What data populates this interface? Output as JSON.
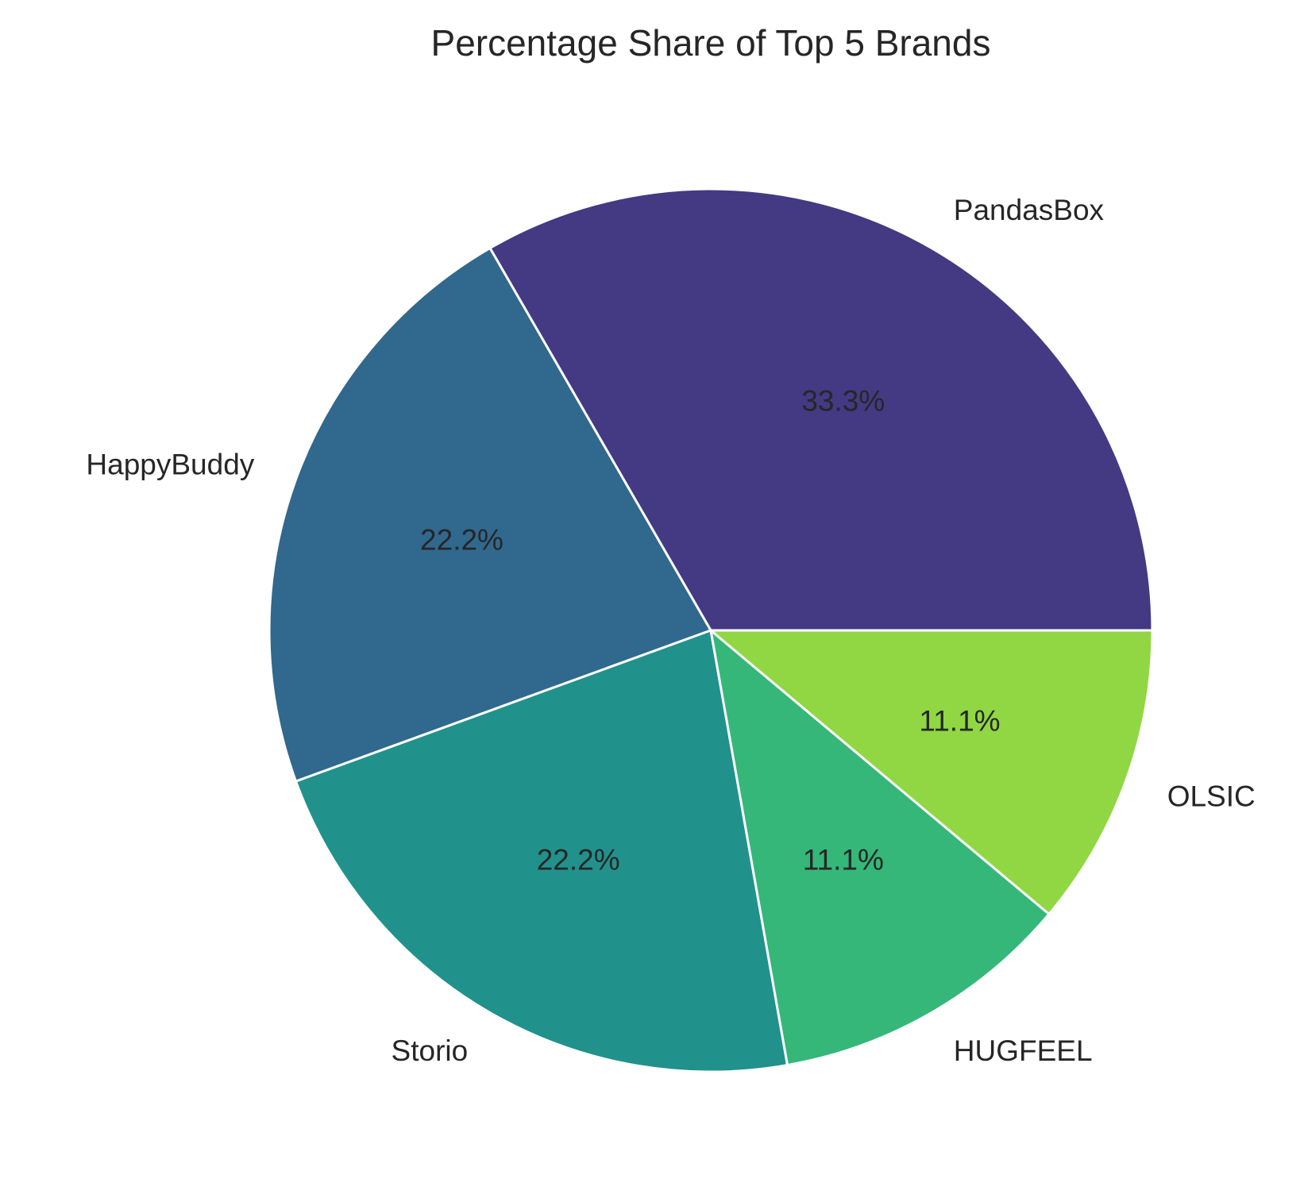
{
  "chart_data": {
    "type": "pie",
    "title": "Percentage Share of Top 5 Brands",
    "labels": [
      "PandasBox",
      "HappyBuddy",
      "Storio",
      "HUGFEEL",
      "OLSIC"
    ],
    "values": [
      33.3,
      22.2,
      22.2,
      11.1,
      11.1
    ],
    "percent_labels": [
      "33.3%",
      "22.2%",
      "22.2%",
      "11.1%",
      "11.1%"
    ],
    "colors": [
      "#443983",
      "#31688e",
      "#21918c",
      "#35b779",
      "#90d743"
    ],
    "start_angle_deg": 0,
    "direction": "counterclockwise",
    "legend": "none"
  }
}
